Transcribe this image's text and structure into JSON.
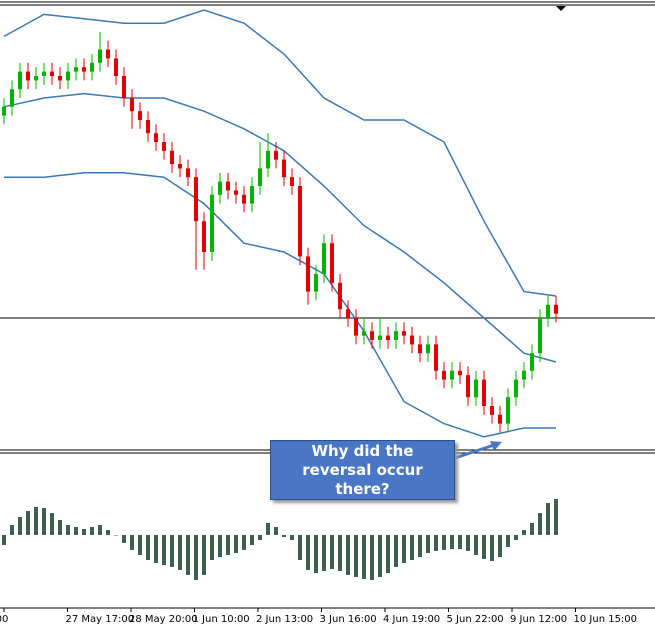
{
  "chart_data": {
    "type": "candlestick",
    "ylim": [
      0,
      100
    ],
    "up_color": "#00b400",
    "down_color": "#e00000",
    "open": [
      76,
      78,
      82,
      86,
      84,
      85,
      86,
      85,
      84,
      86,
      87,
      86,
      88,
      91,
      89,
      85,
      80,
      77,
      75,
      72,
      70,
      68,
      65,
      64,
      62,
      52,
      45,
      58,
      61,
      59,
      58,
      56,
      60,
      64,
      68,
      66,
      62,
      60,
      44,
      36,
      40,
      47,
      38,
      32,
      30,
      26,
      27,
      25,
      26,
      25,
      27,
      26,
      24,
      22,
      24,
      18,
      16,
      18,
      17,
      12,
      16,
      10,
      8,
      6,
      12,
      16,
      18,
      22,
      30,
      33
    ],
    "high": [
      80,
      84,
      88,
      88,
      87,
      88,
      88,
      87,
      88,
      89,
      89,
      90,
      95,
      93,
      91,
      87,
      82,
      79,
      77,
      74,
      72,
      70,
      67,
      66,
      64,
      54,
      60,
      63,
      63,
      61,
      60,
      62,
      70,
      72,
      70,
      68,
      64,
      62,
      46,
      42,
      49,
      49,
      40,
      34,
      32,
      30,
      29,
      30,
      28,
      29,
      29,
      28,
      26,
      26,
      26,
      20,
      20,
      20,
      19,
      18,
      18,
      12,
      10,
      14,
      18,
      20,
      24,
      32,
      35,
      35
    ],
    "low": [
      74,
      76,
      80,
      82,
      82,
      83,
      83,
      82,
      82,
      84,
      84,
      84,
      86,
      87,
      83,
      78,
      73,
      73,
      70,
      68,
      66,
      63,
      62,
      60,
      41,
      41,
      43,
      56,
      57,
      56,
      54,
      54,
      58,
      62,
      64,
      60,
      58,
      42,
      33,
      34,
      38,
      36,
      30,
      28,
      24,
      24,
      23,
      23,
      23,
      23,
      24,
      22,
      20,
      20,
      16,
      14,
      14,
      15,
      10,
      10,
      8,
      6,
      4,
      4,
      10,
      14,
      16,
      20,
      28,
      29
    ],
    "close": [
      78,
      82,
      86,
      84,
      85,
      86,
      85,
      84,
      86,
      87,
      86,
      88,
      91,
      89,
      85,
      80,
      77,
      75,
      72,
      70,
      68,
      65,
      64,
      62,
      52,
      45,
      58,
      61,
      59,
      58,
      56,
      60,
      64,
      68,
      66,
      62,
      60,
      44,
      36,
      40,
      47,
      38,
      32,
      30,
      26,
      27,
      25,
      26,
      25,
      27,
      26,
      24,
      22,
      24,
      18,
      16,
      18,
      17,
      12,
      16,
      10,
      8,
      6,
      12,
      16,
      18,
      22,
      30,
      33,
      31
    ],
    "price_line": 30,
    "bands": {
      "color": "#3b78b4",
      "x": [
        0,
        5,
        10,
        15,
        20,
        25,
        30,
        35,
        40,
        45,
        50,
        55,
        60,
        65,
        69
      ],
      "upper": [
        94,
        99,
        98,
        97,
        97,
        100,
        97,
        90,
        80,
        75,
        75,
        70,
        52,
        36,
        35
      ],
      "middle": [
        78,
        80,
        81,
        80,
        80,
        77,
        73,
        68,
        60,
        51,
        45,
        38,
        30,
        22,
        20
      ],
      "lower": [
        62,
        62,
        63,
        63,
        62,
        56,
        47,
        45,
        40,
        27,
        11,
        6,
        3,
        5,
        5
      ]
    },
    "oscillator": {
      "color": "#3e5e50",
      "ylim": [
        -75,
        80
      ],
      "values": [
        -10,
        10,
        18,
        24,
        28,
        27,
        22,
        15,
        10,
        8,
        6,
        8,
        10,
        5,
        0,
        -8,
        -15,
        -20,
        -25,
        -28,
        -30,
        -32,
        -35,
        -40,
        -45,
        -40,
        -25,
        -22,
        -20,
        -18,
        -15,
        -10,
        -5,
        12,
        8,
        -2,
        -5,
        -25,
        -35,
        -38,
        -36,
        -34,
        -36,
        -40,
        -42,
        -44,
        -45,
        -42,
        -38,
        -32,
        -28,
        -25,
        -22,
        -18,
        -16,
        -15,
        -14,
        -14,
        -16,
        -20,
        -24,
        -26,
        -22,
        -12,
        -5,
        5,
        12,
        22,
        32,
        36
      ]
    },
    "categories": [
      "00",
      "27 May 17:00",
      "28 May 20:00",
      "1 Jun 10:00",
      "2 Jun 13:00",
      "3 Jun 16:00",
      "4 Jun 19:00",
      "5 Jun 22:00",
      "9 Jun 12:00",
      "10 Jun 15:00"
    ],
    "annotation": "Why did the reversal occur there?"
  }
}
